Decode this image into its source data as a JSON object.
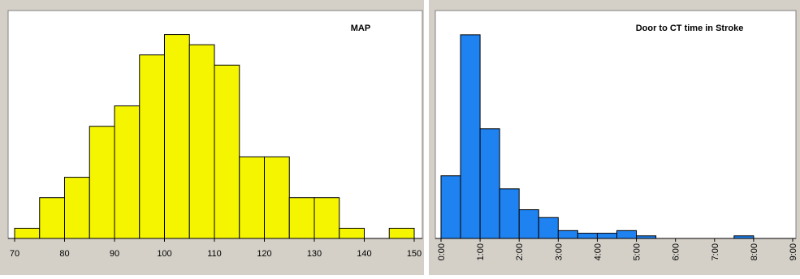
{
  "chart_data": [
    {
      "type": "bar",
      "title": "MAP",
      "xlabel": "",
      "ylabel": "",
      "bin_edges": [
        70,
        75,
        80,
        85,
        90,
        95,
        100,
        105,
        110,
        115,
        120,
        125,
        130,
        135,
        140,
        145,
        150
      ],
      "values": [
        1,
        4,
        6,
        11,
        13,
        18,
        20,
        19,
        17,
        8,
        8,
        4,
        4,
        1,
        0,
        1
      ],
      "ylim": [
        0,
        21
      ],
      "xlim": [
        70,
        150
      ],
      "x_ticks": [
        70,
        80,
        90,
        100,
        110,
        120,
        130,
        140,
        150
      ],
      "tick_labels": [
        "70",
        "80",
        "90",
        "100",
        "110",
        "120",
        "130",
        "140",
        "150"
      ],
      "bar_color": "#f5f500",
      "grid": false
    },
    {
      "type": "bar",
      "title": "Door to CT time in Stroke",
      "xlabel": "",
      "ylabel": "",
      "bin_edges": [
        0,
        0.5,
        1,
        1.5,
        2,
        2.5,
        3,
        3.5,
        4,
        4.5,
        5,
        5.5,
        6,
        6.5,
        7,
        7.5,
        8,
        8.5,
        9
      ],
      "values": [
        24,
        78,
        42,
        19,
        11,
        8,
        3,
        2,
        2,
        3,
        1,
        0,
        0,
        0,
        0,
        1,
        0,
        0
      ],
      "ylim": [
        0,
        82
      ],
      "xlim": [
        0,
        9
      ],
      "x_ticks": [
        0,
        1,
        2,
        3,
        4,
        5,
        6,
        7,
        8,
        9
      ],
      "tick_labels": [
        "0:00",
        "1:00",
        "2:00",
        "3:00",
        "4:00",
        "5:00",
        "6:00",
        "7:00",
        "8:00",
        "9:00"
      ],
      "bar_color": "#1e82f0",
      "grid": false
    }
  ]
}
